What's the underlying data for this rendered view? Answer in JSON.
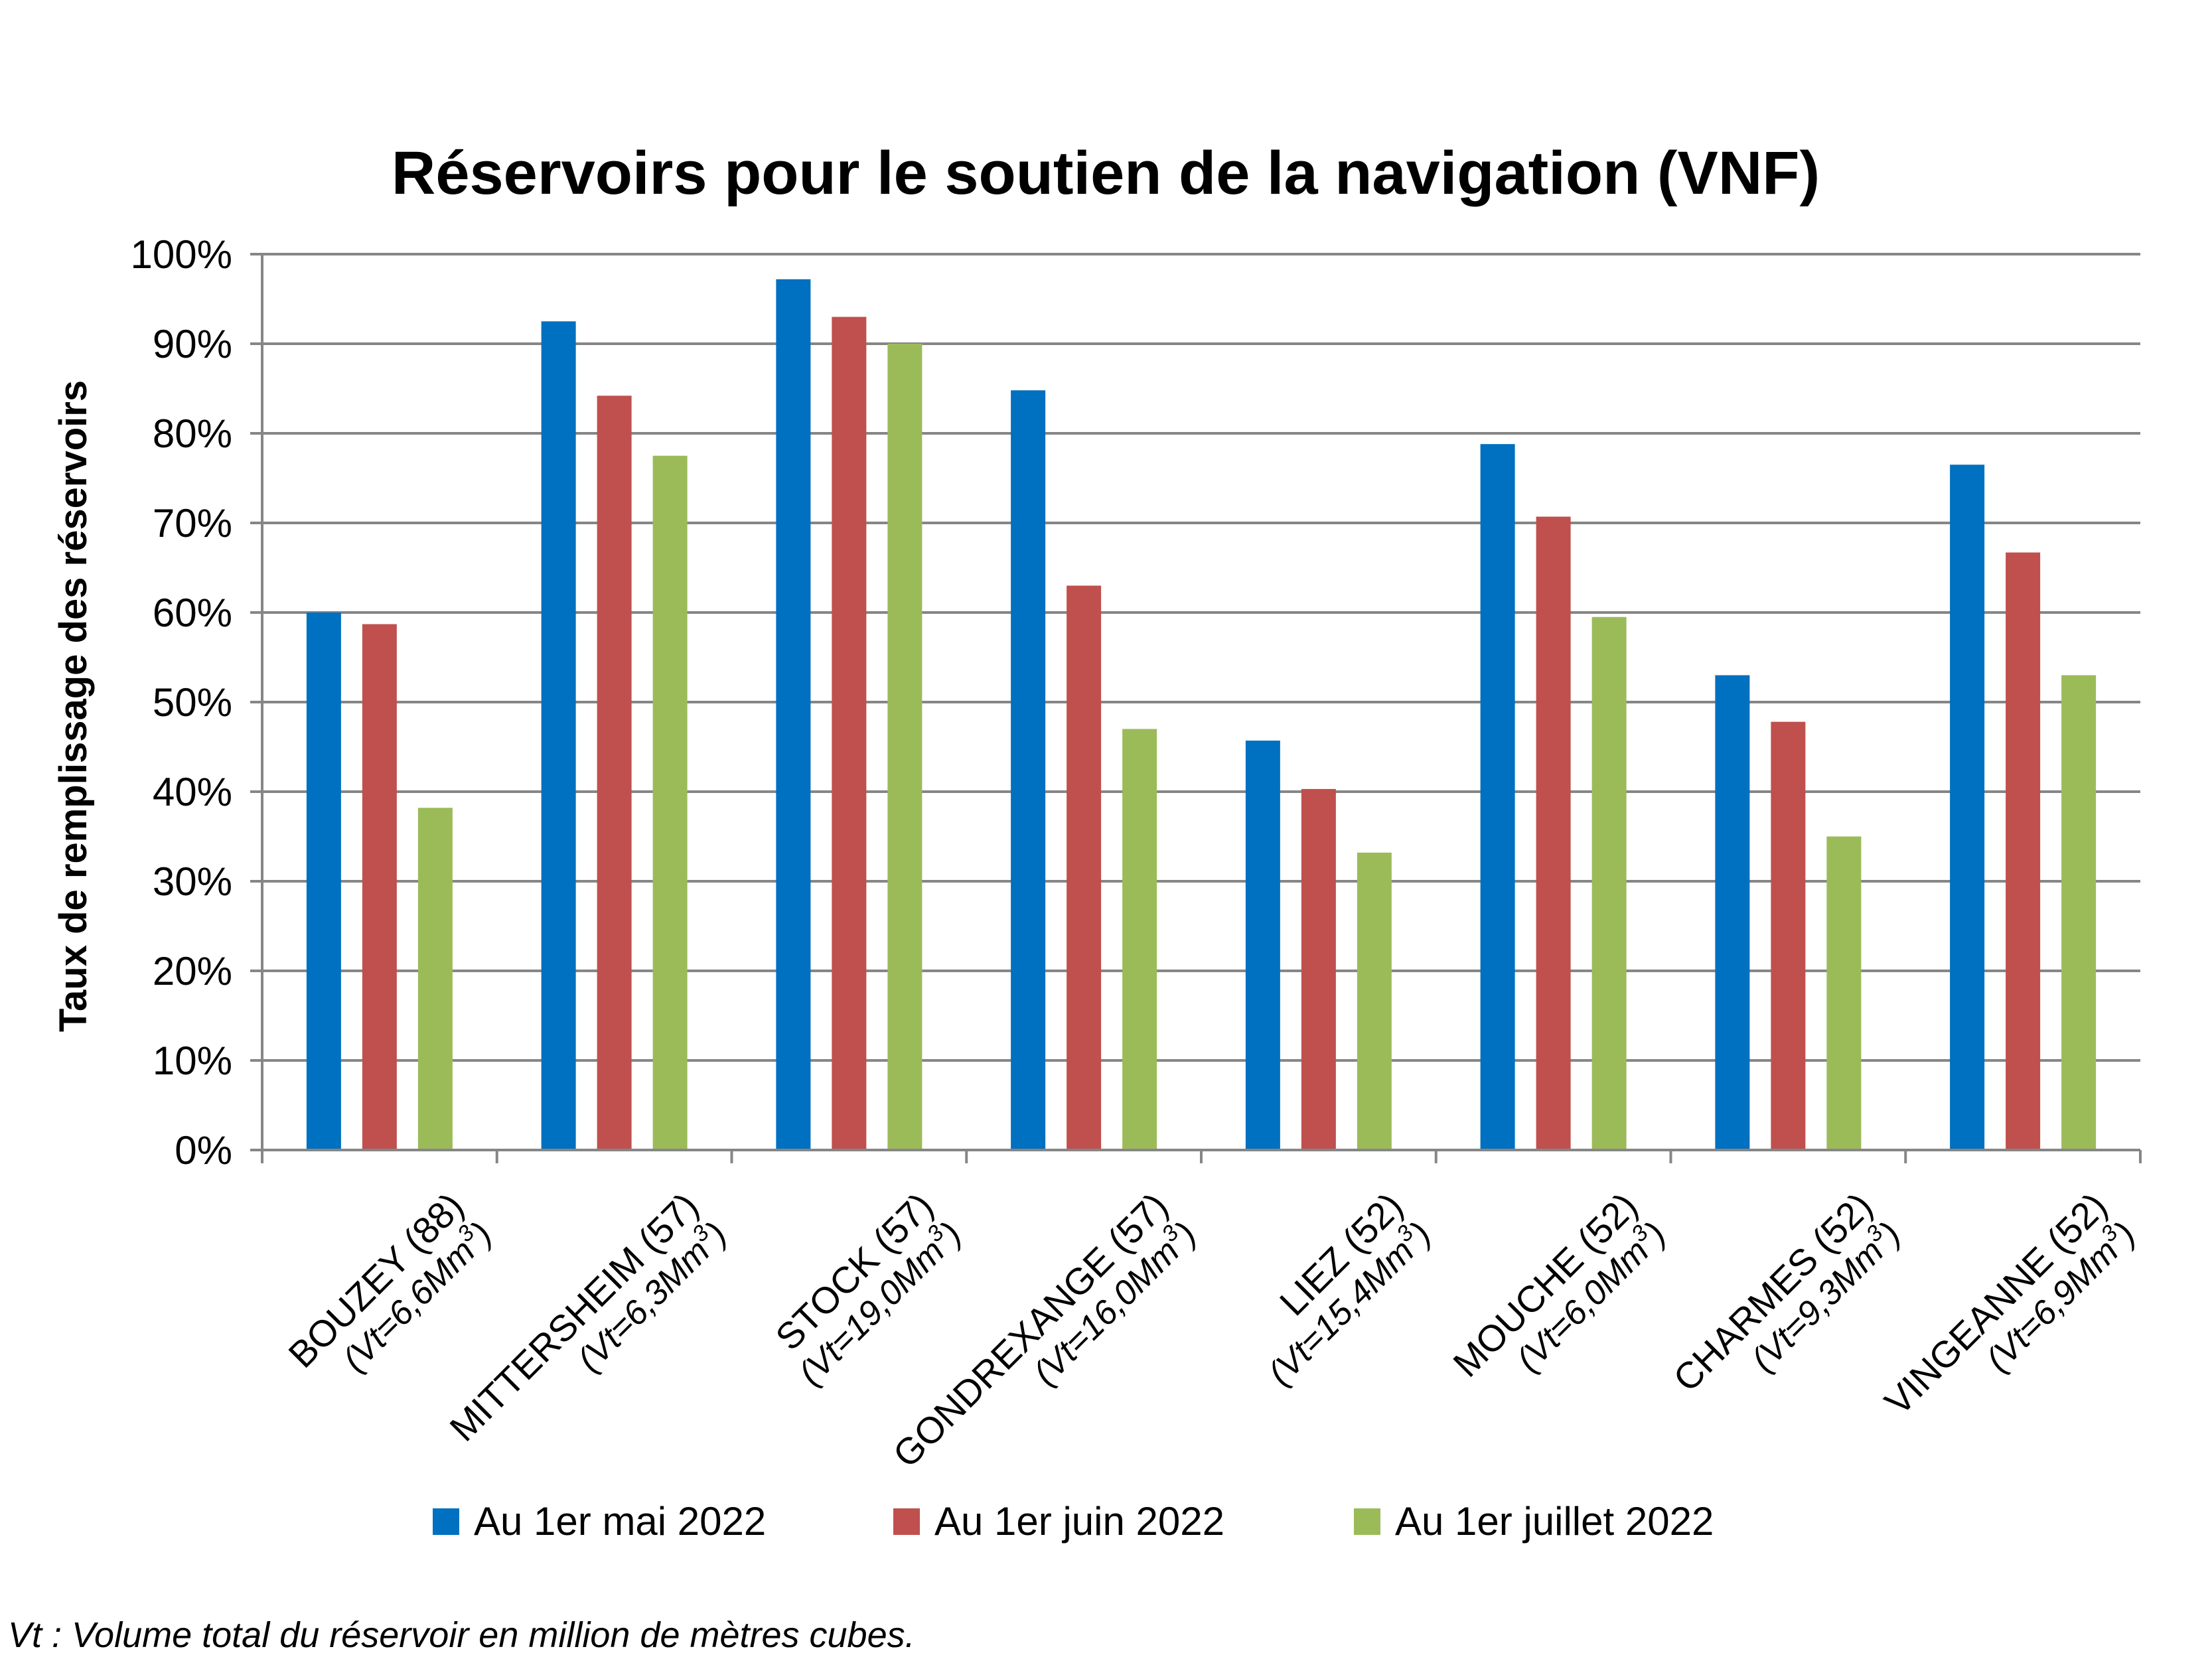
{
  "chart_data": {
    "type": "bar",
    "title": "Réservoirs pour le soutien de la navigation (VNF)",
    "ylabel": "Taux de remplissage des réservoirs",
    "xlabel": "",
    "ylim": [
      0,
      100
    ],
    "y_ticks": [
      "0%",
      "10%",
      "20%",
      "30%",
      "40%",
      "50%",
      "60%",
      "70%",
      "80%",
      "90%",
      "100%"
    ],
    "grid": true,
    "legend_position": "bottom",
    "categories": [
      {
        "name": "BOUZEY (88)",
        "sub_prefix": "(Vt=6,6Mm",
        "sup": "3",
        "sub_suffix": ")"
      },
      {
        "name": "MITTERSHEIM (57)",
        "sub_prefix": "(Vt=6,3Mm",
        "sup": "3",
        "sub_suffix": ")"
      },
      {
        "name": "STOCK (57)",
        "sub_prefix": "(Vt=19,0Mm",
        "sup": "3",
        "sub_suffix": ")"
      },
      {
        "name": "GONDREXANGE (57)",
        "sub_prefix": "(Vt=16,0Mm",
        "sup": "3",
        "sub_suffix": ")"
      },
      {
        "name": "LIEZ (52)",
        "sub_prefix": "(Vt=15,4Mm",
        "sup": "3",
        "sub_suffix": ")"
      },
      {
        "name": "MOUCHE (52)",
        "sub_prefix": "(Vt=6,0Mm",
        "sup": "3",
        "sub_suffix": ")"
      },
      {
        "name": "CHARMES (52)",
        "sub_prefix": "(Vt=9,3Mm",
        "sup": "3",
        "sub_suffix": ")"
      },
      {
        "name": "VINGEANNE (52)",
        "sub_prefix": "(Vt=6,9Mm",
        "sup": "3",
        "sub_suffix": ")"
      }
    ],
    "series": [
      {
        "name": "Au 1er mai 2022",
        "color": "#0070C0",
        "values": [
          60,
          92.5,
          97.2,
          84.8,
          45.7,
          78.8,
          53,
          76.5
        ]
      },
      {
        "name": "Au 1er juin 2022",
        "color": "#C0504D",
        "values": [
          58.7,
          84.2,
          93,
          63,
          40.3,
          70.7,
          47.8,
          66.7
        ]
      },
      {
        "name": "Au 1er juillet 2022",
        "color": "#9BBB59",
        "values": [
          38.2,
          77.5,
          90,
          47,
          33.2,
          59.5,
          35,
          53
        ]
      }
    ],
    "footnote": "Vt : Volume total du réservoir en million de mètres cubes."
  }
}
